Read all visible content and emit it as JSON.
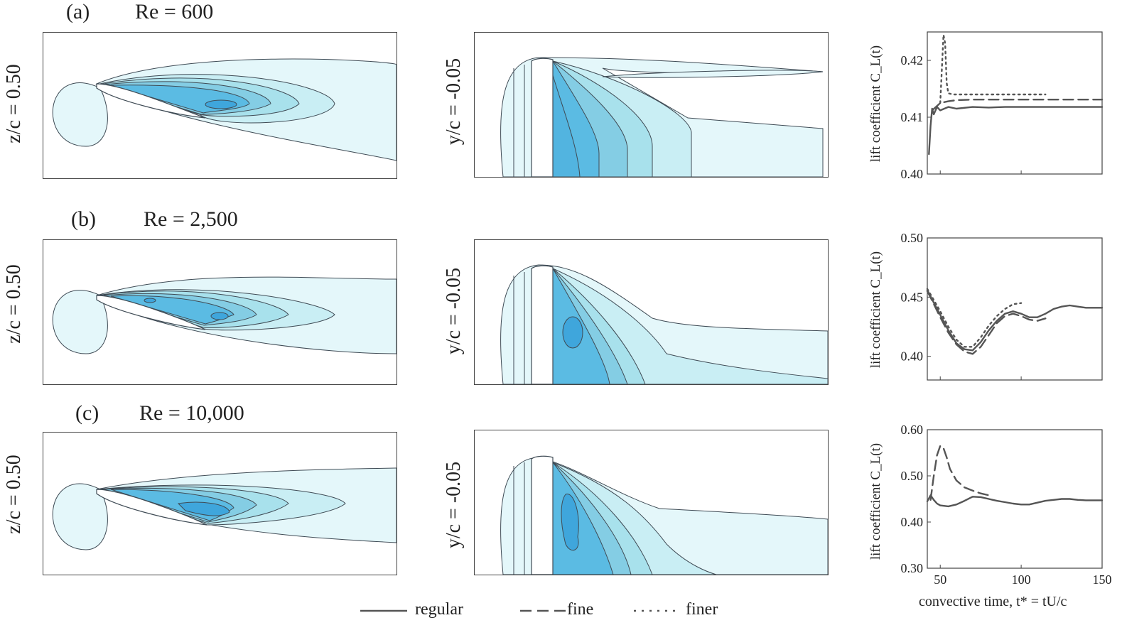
{
  "figure": {
    "rows": [
      {
        "id": "a",
        "label": "(a)",
        "re": "Re = 600",
        "z_label": "z/c = 0.50",
        "y_label": "y/c = -0.05"
      },
      {
        "id": "b",
        "label": "(b)",
        "re": "Re = 2,500",
        "z_label": "z/c = 0.50",
        "y_label": "y/c = -0.05"
      },
      {
        "id": "c",
        "label": "(c)",
        "re": "Re = 10,000",
        "z_label": "z/c = 0.50",
        "y_label": "y/c = -0.05"
      }
    ],
    "legend": {
      "regular": "regular",
      "fine": "fine",
      "finer": "finer"
    },
    "colors": {
      "outline": "#3f4b55",
      "level1": "#e4f7fa",
      "level2": "#c9eef4",
      "level3": "#a8e1ec",
      "level4": "#84cde4",
      "level5": "#5bbbe3",
      "level6": "#3fa6dc",
      "curve": "#555555"
    }
  },
  "chart_data": [
    {
      "type": "line",
      "panel": "a",
      "ylabel": "lift coefficient C_L(t)",
      "ylim": [
        0.4,
        0.425
      ],
      "yticks": [
        "0.40",
        "0.41",
        "0.42"
      ],
      "xlim": [
        42,
        150
      ],
      "series": [
        {
          "name": "regular",
          "style": "solid",
          "x": [
            43,
            44,
            45,
            46,
            48,
            50,
            55,
            60,
            70,
            80,
            90,
            100,
            110,
            120,
            130,
            140,
            150
          ],
          "y": [
            0.4035,
            0.4085,
            0.4115,
            0.4105,
            0.4118,
            0.4112,
            0.4118,
            0.4115,
            0.4118,
            0.4117,
            0.4118,
            0.4118,
            0.4118,
            0.4118,
            0.4118,
            0.4118,
            0.4118
          ]
        },
        {
          "name": "fine",
          "style": "dashed",
          "x": [
            45,
            50,
            55,
            60,
            70,
            80,
            90,
            100,
            110,
            120,
            130,
            140,
            150
          ],
          "y": [
            0.4112,
            0.4125,
            0.4128,
            0.413,
            0.4131,
            0.4131,
            0.4131,
            0.4131,
            0.4131,
            0.4131,
            0.4131,
            0.4131,
            0.4131
          ]
        },
        {
          "name": "finer",
          "style": "dotted",
          "x": [
            50,
            52,
            53,
            54,
            55,
            58,
            60,
            70,
            80,
            90,
            100,
            110,
            115
          ],
          "y": [
            0.4125,
            0.4245,
            0.423,
            0.416,
            0.4142,
            0.414,
            0.414,
            0.414,
            0.414,
            0.414,
            0.414,
            0.414,
            0.414
          ]
        }
      ]
    },
    {
      "type": "line",
      "panel": "b",
      "ylabel": "lift coefficient C_L(t)",
      "ylim": [
        0.38,
        0.5
      ],
      "yticks": [
        "0.40",
        "0.45",
        "0.50"
      ],
      "xlim": [
        42,
        150
      ],
      "series": [
        {
          "name": "regular",
          "style": "solid",
          "x": [
            42,
            45,
            50,
            55,
            60,
            65,
            70,
            75,
            80,
            85,
            90,
            95,
            100,
            105,
            110,
            115,
            120,
            125,
            130,
            135,
            140,
            145,
            150
          ],
          "y": [
            0.456,
            0.448,
            0.435,
            0.422,
            0.411,
            0.406,
            0.405,
            0.412,
            0.422,
            0.43,
            0.436,
            0.438,
            0.436,
            0.433,
            0.433,
            0.436,
            0.44,
            0.442,
            0.443,
            0.442,
            0.441,
            0.441,
            0.441
          ]
        },
        {
          "name": "fine",
          "style": "dashed",
          "x": [
            42,
            45,
            50,
            55,
            60,
            65,
            70,
            75,
            80,
            85,
            90,
            95,
            100,
            105,
            110,
            115
          ],
          "y": [
            0.455,
            0.447,
            0.433,
            0.42,
            0.41,
            0.404,
            0.402,
            0.408,
            0.418,
            0.428,
            0.434,
            0.436,
            0.434,
            0.431,
            0.43,
            0.432
          ]
        },
        {
          "name": "finer",
          "style": "dotted",
          "x": [
            42,
            45,
            50,
            55,
            60,
            65,
            70,
            75,
            80,
            85,
            90,
            95,
            100
          ],
          "y": [
            0.457,
            0.45,
            0.438,
            0.425,
            0.414,
            0.408,
            0.408,
            0.416,
            0.426,
            0.434,
            0.44,
            0.444,
            0.445
          ]
        }
      ]
    },
    {
      "type": "line",
      "panel": "c",
      "ylabel": "lift coefficient C_L(t)",
      "xlabel": "convective time, t* = tU/c",
      "ylim": [
        0.3,
        0.6
      ],
      "yticks": [
        "0.30",
        "0.40",
        "0.50",
        "0.60"
      ],
      "xticks": [
        "50",
        "100",
        "150"
      ],
      "xlim": [
        42,
        150
      ],
      "series": [
        {
          "name": "regular",
          "style": "solid",
          "x": [
            42,
            44,
            46,
            48,
            50,
            55,
            60,
            65,
            70,
            75,
            80,
            85,
            90,
            95,
            100,
            105,
            110,
            115,
            120,
            125,
            130,
            135,
            140,
            145,
            150
          ],
          "y": [
            0.445,
            0.458,
            0.448,
            0.44,
            0.436,
            0.434,
            0.438,
            0.446,
            0.455,
            0.454,
            0.45,
            0.446,
            0.443,
            0.44,
            0.438,
            0.438,
            0.442,
            0.446,
            0.448,
            0.45,
            0.45,
            0.448,
            0.447,
            0.447,
            0.447
          ]
        },
        {
          "name": "fine",
          "style": "dashed",
          "x": [
            44,
            46,
            48,
            50,
            52,
            54,
            56,
            60,
            65,
            70,
            75,
            80
          ],
          "y": [
            0.448,
            0.5,
            0.545,
            0.565,
            0.56,
            0.54,
            0.515,
            0.49,
            0.475,
            0.468,
            0.462,
            0.458
          ]
        }
      ]
    }
  ]
}
